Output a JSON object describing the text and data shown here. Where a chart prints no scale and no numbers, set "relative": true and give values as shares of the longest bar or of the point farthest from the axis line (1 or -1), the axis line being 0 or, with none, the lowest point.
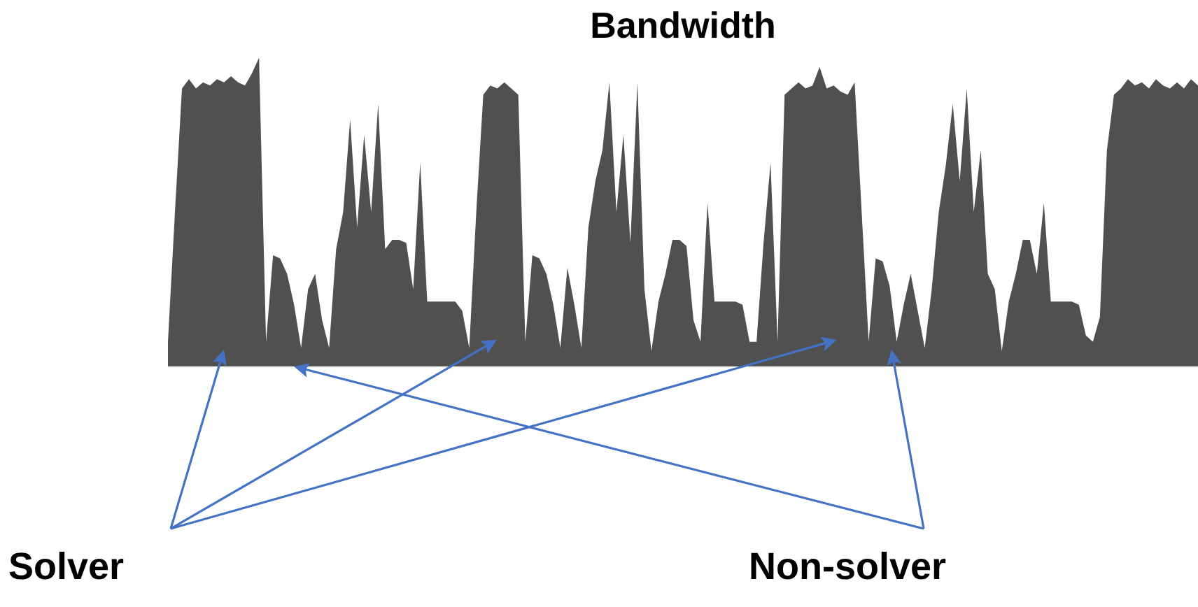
{
  "chart_data": {
    "type": "area",
    "title": "Bandwidth",
    "relative": true,
    "color": "#505050",
    "categories": [
      null,
      null,
      null,
      null,
      null,
      null,
      null,
      null,
      null,
      null,
      null,
      null,
      null,
      null,
      null,
      null,
      null,
      null,
      null,
      null,
      null,
      null,
      null,
      null,
      null,
      null,
      null,
      null,
      null,
      null,
      null,
      null,
      null,
      null,
      null,
      null,
      null,
      null,
      null,
      null,
      null,
      null,
      null,
      null,
      null,
      null,
      null,
      null,
      null,
      null,
      null,
      null,
      null,
      null,
      null,
      null,
      null,
      null,
      null,
      null,
      null,
      null,
      null,
      null,
      null,
      null,
      null,
      null,
      null,
      null,
      null,
      null,
      null,
      null,
      null,
      null,
      null,
      null,
      null,
      null,
      null,
      null,
      null,
      null,
      null,
      null,
      null,
      null,
      null,
      null,
      null,
      null,
      null,
      null,
      null,
      null,
      null,
      null,
      null,
      null,
      null,
      null,
      null,
      null,
      null,
      null,
      null,
      null,
      null,
      null,
      null,
      null,
      null,
      null,
      null,
      null,
      null,
      null,
      null,
      null,
      null,
      null,
      null,
      null,
      null,
      null,
      null,
      null,
      null,
      null,
      null,
      null,
      null,
      null,
      null,
      null,
      null,
      null,
      null,
      null,
      null,
      null,
      null,
      null,
      null,
      null,
      null,
      null
    ],
    "values": [
      0.08,
      0.5,
      0.9,
      0.93,
      0.9,
      0.92,
      0.91,
      0.93,
      0.92,
      0.94,
      0.92,
      0.91,
      0.95,
      1.0,
      0.08,
      0.36,
      0.35,
      0.3,
      0.2,
      0.06,
      0.25,
      0.3,
      0.15,
      0.06,
      0.38,
      0.5,
      0.8,
      0.45,
      0.75,
      0.5,
      0.85,
      0.38,
      0.41,
      0.41,
      0.4,
      0.25,
      0.66,
      0.21,
      0.21,
      0.21,
      0.21,
      0.21,
      0.18,
      0.06,
      0.5,
      0.88,
      0.91,
      0.9,
      0.92,
      0.9,
      0.88,
      0.08,
      0.36,
      0.35,
      0.3,
      0.2,
      0.06,
      0.32,
      0.2,
      0.06,
      0.45,
      0.6,
      0.7,
      0.92,
      0.5,
      0.75,
      0.4,
      0.92,
      0.25,
      0.05,
      0.21,
      0.3,
      0.41,
      0.41,
      0.39,
      0.15,
      0.08,
      0.53,
      0.21,
      0.21,
      0.21,
      0.21,
      0.2,
      0.08,
      0.08,
      0.4,
      0.66,
      0.08,
      0.88,
      0.9,
      0.92,
      0.9,
      0.91,
      0.97,
      0.9,
      0.91,
      0.89,
      0.88,
      0.92,
      0.5,
      0.08,
      0.35,
      0.34,
      0.26,
      0.08,
      0.2,
      0.3,
      0.18,
      0.06,
      0.25,
      0.5,
      0.65,
      0.85,
      0.6,
      0.9,
      0.5,
      0.7,
      0.3,
      0.25,
      0.05,
      0.21,
      0.3,
      0.41,
      0.41,
      0.3,
      0.53,
      0.21,
      0.21,
      0.21,
      0.21,
      0.2,
      0.1,
      0.08,
      0.16,
      0.7,
      0.88,
      0.9,
      0.93,
      0.91,
      0.92,
      0.9,
      0.93,
      0.91,
      0.9,
      0.92,
      0.9,
      0.93,
      0.91
    ],
    "annotations": [
      "Solver",
      "Non-solver"
    ]
  }
}
